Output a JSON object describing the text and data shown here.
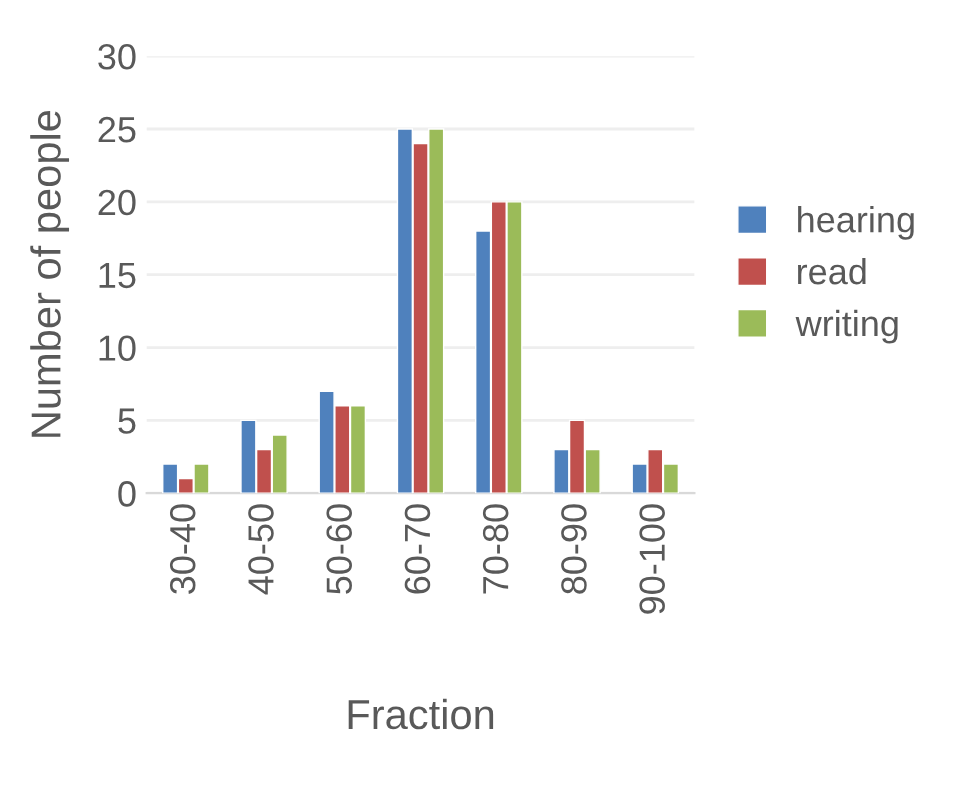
{
  "chart_data": {
    "type": "bar",
    "xlabel": "Fraction",
    "ylabel": "Number of people",
    "categories": [
      "30-40",
      "40-50",
      "50-60",
      "60-70",
      "70-80",
      "80-90",
      "90-100"
    ],
    "series": [
      {
        "name": "hearing",
        "color": "#4f81bd",
        "values": [
          2,
          5,
          7,
          25,
          18,
          3,
          2
        ]
      },
      {
        "name": "read",
        "color": "#c0504d",
        "values": [
          1,
          3,
          6,
          24,
          20,
          5,
          3
        ]
      },
      {
        "name": "writing",
        "color": "#9bbb59",
        "values": [
          2,
          4,
          6,
          25,
          20,
          3,
          2
        ]
      }
    ],
    "ylim": [
      0,
      30
    ],
    "yticks": [
      0,
      5,
      10,
      15,
      20,
      25,
      30
    ],
    "grid": "y",
    "legend": "right"
  }
}
